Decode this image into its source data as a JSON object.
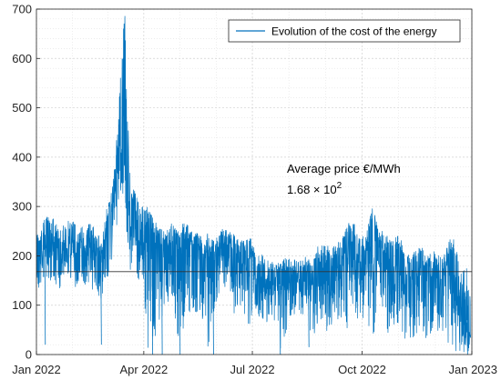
{
  "chart_data": {
    "type": "line",
    "title": "",
    "xlabel": "",
    "ylabel": "",
    "xlim": [
      "2022-01-01",
      "2023-01-01"
    ],
    "ylim": [
      0,
      700
    ],
    "yticks": [
      0,
      100,
      200,
      300,
      400,
      500,
      600,
      700
    ],
    "xtick_labels": [
      "Jan 2022",
      "Apr 2022",
      "Jul 2022",
      "Oct 2022",
      "Jan 2023"
    ],
    "grid": true,
    "minor_grid": true,
    "legend_position": "top-right",
    "series_color": "#0072BD",
    "series": [
      {
        "name": "Evolution of the cost of the energy",
        "x": [
          "2022-01-01",
          "2022-01-05",
          "2022-01-10",
          "2022-01-15",
          "2022-01-20",
          "2022-01-25",
          "2022-01-31",
          "2022-02-05",
          "2022-02-10",
          "2022-02-15",
          "2022-02-20",
          "2022-02-25",
          "2022-03-01",
          "2022-03-04",
          "2022-03-08",
          "2022-03-12",
          "2022-03-16",
          "2022-03-20",
          "2022-03-25",
          "2022-03-31",
          "2022-04-05",
          "2022-04-10",
          "2022-04-15",
          "2022-04-20",
          "2022-04-25",
          "2022-04-30",
          "2022-05-05",
          "2022-05-10",
          "2022-05-15",
          "2022-05-20",
          "2022-05-25",
          "2022-05-31",
          "2022-06-05",
          "2022-06-10",
          "2022-06-15",
          "2022-06-20",
          "2022-06-25",
          "2022-06-30",
          "2022-07-05",
          "2022-07-10",
          "2022-07-15",
          "2022-07-20",
          "2022-07-25",
          "2022-07-31",
          "2022-08-05",
          "2022-08-10",
          "2022-08-15",
          "2022-08-20",
          "2022-08-25",
          "2022-08-31",
          "2022-09-05",
          "2022-09-10",
          "2022-09-15",
          "2022-09-20",
          "2022-09-25",
          "2022-09-30",
          "2022-10-05",
          "2022-10-10",
          "2022-10-15",
          "2022-10-20",
          "2022-10-25",
          "2022-10-31",
          "2022-11-05",
          "2022-11-10",
          "2022-11-15",
          "2022-11-20",
          "2022-11-25",
          "2022-11-30",
          "2022-12-05",
          "2022-12-10",
          "2022-12-15",
          "2022-12-20",
          "2022-12-25",
          "2022-12-31"
        ],
        "center": [
          190,
          215,
          225,
          230,
          210,
          215,
          220,
          205,
          215,
          225,
          200,
          185,
          245,
          290,
          330,
          440,
          395,
          270,
          245,
          230,
          225,
          215,
          205,
          200,
          210,
          205,
          220,
          210,
          200,
          195,
          200,
          190,
          215,
          205,
          200,
          185,
          185,
          190,
          150,
          160,
          150,
          140,
          145,
          150,
          150,
          145,
          150,
          140,
          165,
          170,
          160,
          165,
          180,
          200,
          195,
          175,
          190,
          205,
          190,
          180,
          175,
          185,
          160,
          150,
          165,
          160,
          155,
          160,
          150,
          165,
          170,
          130,
          65,
          40
        ],
        "low": [
          110,
          140,
          150,
          150,
          130,
          160,
          150,
          120,
          140,
          140,
          120,
          100,
          100,
          170,
          230,
          310,
          280,
          170,
          160,
          140,
          0,
          30,
          60,
          100,
          120,
          0,
          60,
          80,
          70,
          70,
          0,
          100,
          120,
          100,
          80,
          100,
          40,
          60,
          60,
          70,
          60,
          70,
          0,
          60,
          80,
          60,
          80,
          20,
          70,
          40,
          60,
          70,
          70,
          40,
          60,
          60,
          60,
          40,
          70,
          40,
          40,
          60,
          30,
          30,
          40,
          40,
          20,
          20,
          50,
          20,
          20,
          0,
          0,
          0
        ],
        "high": [
          250,
          270,
          280,
          285,
          250,
          270,
          275,
          260,
          265,
          270,
          250,
          230,
          300,
          330,
          390,
          550,
          700,
          380,
          330,
          300,
          300,
          270,
          260,
          250,
          270,
          250,
          275,
          255,
          250,
          240,
          250,
          230,
          260,
          250,
          245,
          230,
          235,
          235,
          200,
          205,
          200,
          180,
          190,
          200,
          195,
          190,
          200,
          185,
          220,
          225,
          215,
          225,
          240,
          270,
          265,
          230,
          255,
          300,
          250,
          250,
          230,
          245,
          220,
          200,
          210,
          220,
          200,
          210,
          200,
          210,
          255,
          200,
          180,
          170
        ],
        "spikes": [
          {
            "x": "2022-01-08",
            "y": 20
          },
          {
            "x": "2022-02-24",
            "y": 20
          },
          {
            "x": "2022-04-08",
            "y": 0
          },
          {
            "x": "2022-04-16",
            "y": 0
          },
          {
            "x": "2022-05-01",
            "y": 0
          },
          {
            "x": "2022-05-29",
            "y": 0
          },
          {
            "x": "2022-07-24",
            "y": 0
          },
          {
            "x": "2022-08-17",
            "y": 15
          },
          {
            "x": "2022-12-28",
            "y": 0
          }
        ]
      }
    ],
    "reference_lines": [
      {
        "name": "Average price",
        "y": 168
      }
    ],
    "annotation": {
      "line1": "Average price €/MWh",
      "mantissa": "1.68 × 10",
      "exponent": "2"
    }
  }
}
